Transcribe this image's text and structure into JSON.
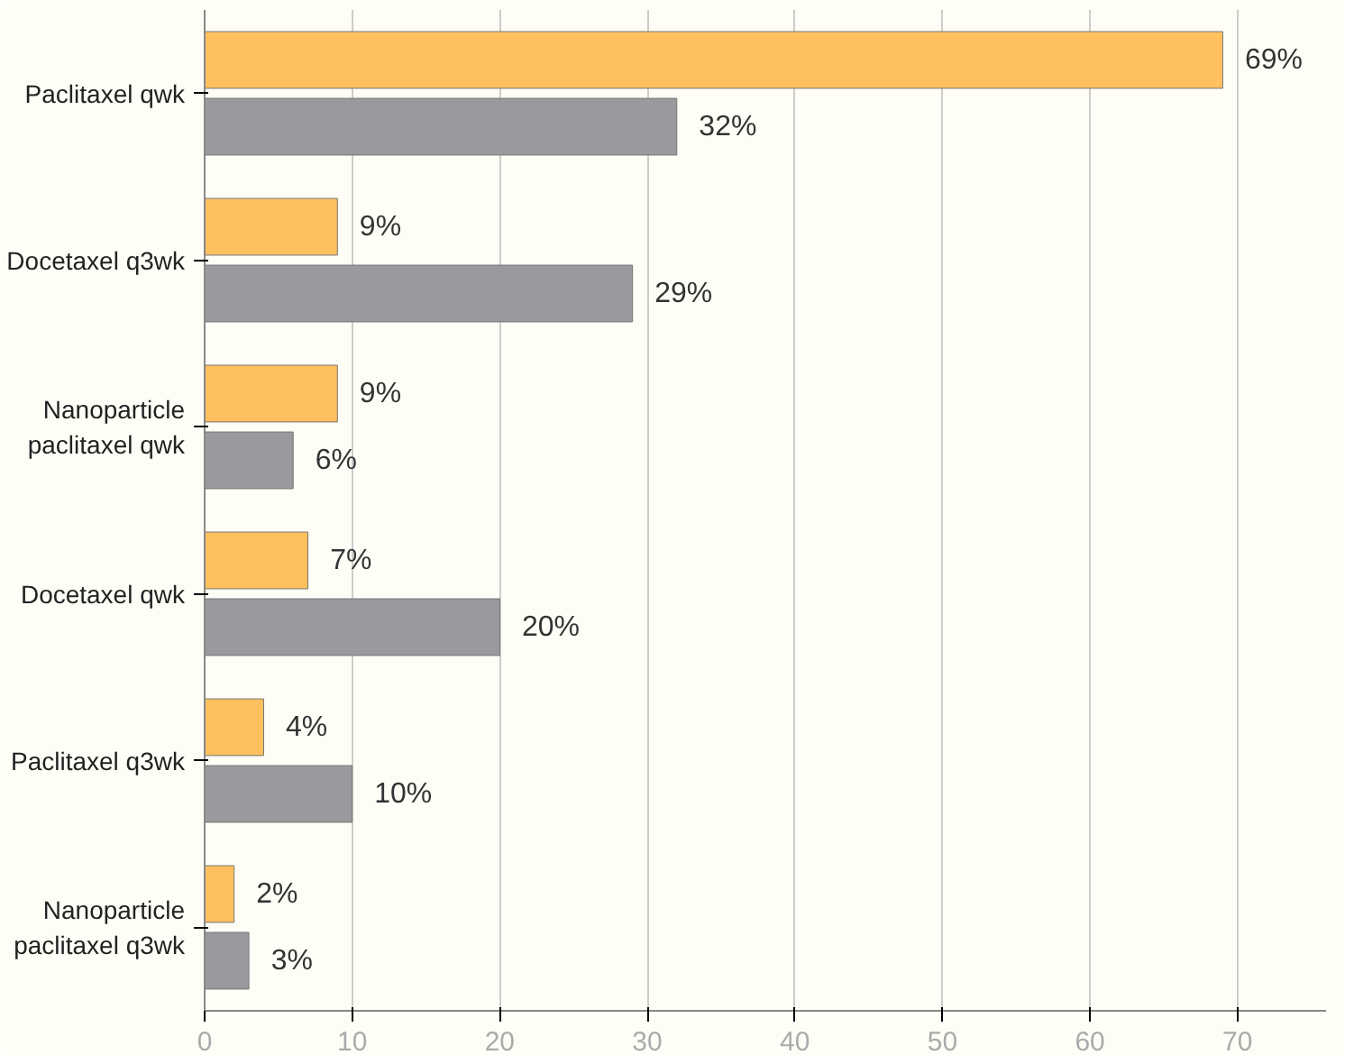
{
  "chart_data": {
    "type": "bar",
    "orientation": "horizontal",
    "categories": [
      "Paclitaxel qwk",
      "Docetaxel q3wk",
      "Nanoparticle\npaclitaxel qwk",
      "Docetaxel qwk",
      "Paclitaxel q3wk",
      "Nanoparticle\npaclitaxel q3wk"
    ],
    "series": [
      {
        "color": "#ffc060",
        "values": [
          69,
          9,
          9,
          7,
          4,
          2
        ],
        "value_labels": [
          "69%",
          "9%",
          "9%",
          "7%",
          "4%",
          "2%"
        ]
      },
      {
        "color": "#9a9a9e",
        "values": [
          32,
          29,
          6,
          20,
          10,
          3
        ],
        "value_labels": [
          "32%",
          "29%",
          "6%",
          "20%",
          "10%",
          "3%"
        ]
      }
    ],
    "xlim": [
      0,
      76
    ],
    "xticks": [
      0,
      10,
      20,
      30,
      40,
      50,
      60,
      70
    ],
    "grid": "x"
  }
}
